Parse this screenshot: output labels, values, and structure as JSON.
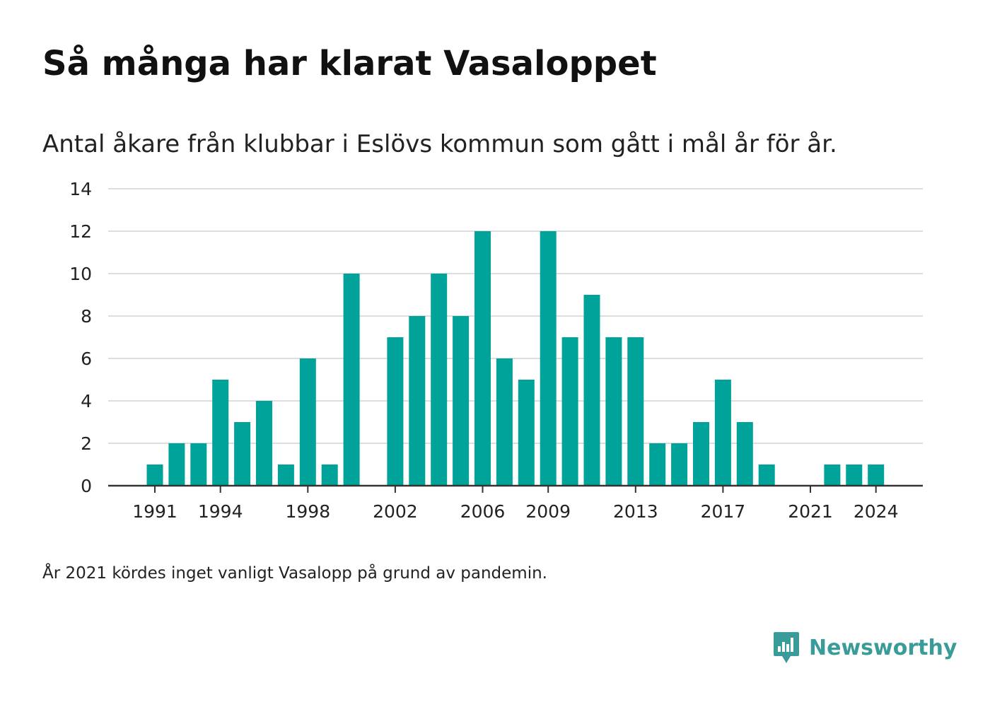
{
  "header": {
    "title": "Så många har klarat Vasaloppet",
    "subtitle": "Antal åkare från klubbar i Eslövs kommun som gått i mål år för år."
  },
  "footnote": "År 2021 kördes inget vanligt Vasalopp på grund av pandemin.",
  "brand": {
    "name": "Newsworthy",
    "icon": "newsworthy-logo-icon",
    "color": "#3a9c98"
  },
  "chart_data": {
    "type": "bar",
    "title": "",
    "xlabel": "",
    "ylabel": "",
    "categories": [
      1991,
      1992,
      1993,
      1994,
      1995,
      1996,
      1997,
      1998,
      1999,
      2000,
      2001,
      2002,
      2003,
      2004,
      2005,
      2006,
      2007,
      2008,
      2009,
      2010,
      2011,
      2012,
      2013,
      2014,
      2015,
      2016,
      2017,
      2018,
      2019,
      2020,
      2021,
      2022,
      2023,
      2024
    ],
    "values": [
      1,
      2,
      2,
      5,
      3,
      4,
      1,
      6,
      1,
      10,
      0,
      7,
      8,
      10,
      8,
      12,
      6,
      5,
      12,
      7,
      9,
      7,
      7,
      2,
      2,
      3,
      5,
      3,
      1,
      0,
      0,
      1,
      1,
      1
    ],
    "x_tick_labels": [
      "1991",
      "1994",
      "1998",
      "2002",
      "2006",
      "2009",
      "2013",
      "2017",
      "2021",
      "2024"
    ],
    "y_ticks": [
      "0",
      "2",
      "4",
      "6",
      "8",
      "10",
      "12",
      "14"
    ],
    "ylim": [
      0,
      14
    ],
    "grid": true,
    "bar_color": "#00a39a"
  }
}
